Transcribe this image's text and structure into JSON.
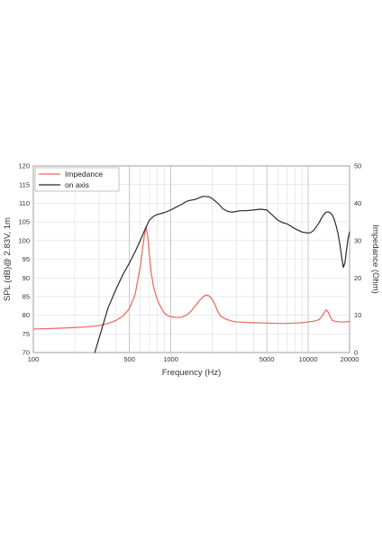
{
  "chart_data": {
    "type": "line",
    "xlabel": "Frequency (Hz)",
    "ylabel": "SPL (dB)@ 2.83V, 1m",
    "y2label": "Impedance (Ohm)",
    "xscale": "log",
    "xlim": [
      100,
      20000
    ],
    "ylim": [
      70,
      120
    ],
    "y2lim": [
      0,
      50
    ],
    "x_ticks": [
      100,
      500,
      1000,
      5000,
      10000,
      20000
    ],
    "y_ticks": [
      70,
      75,
      80,
      85,
      90,
      95,
      100,
      105,
      110,
      115,
      120
    ],
    "y2_ticks": [
      0,
      10,
      20,
      30,
      40,
      50
    ],
    "grid": true,
    "legend_position": "top-left",
    "colors": {
      "impedance": "#e8675e",
      "on_axis": "#2b2b2b"
    },
    "series": [
      {
        "name": "Impedance",
        "axis": "right",
        "x": [
          100,
          150,
          200,
          250,
          300,
          350,
          400,
          450,
          500,
          550,
          600,
          640,
          660,
          680,
          700,
          720,
          750,
          800,
          850,
          900,
          950,
          1000,
          1100,
          1200,
          1300,
          1400,
          1500,
          1600,
          1700,
          1800,
          1900,
          2000,
          2100,
          2200,
          2300,
          2500,
          2800,
          3000,
          4000,
          5000,
          6000,
          7000,
          8000,
          9000,
          10000,
          11000,
          12000,
          12500,
          13000,
          13500,
          14000,
          14500,
          15000,
          16000,
          17000,
          18000,
          20000
        ],
        "values": [
          6.3,
          6.5,
          6.7,
          6.9,
          7.2,
          7.8,
          8.6,
          9.8,
          11.8,
          15.5,
          23,
          31,
          33.8,
          31,
          26,
          21.5,
          17.5,
          14,
          12,
          10.5,
          9.9,
          9.6,
          9.4,
          9.5,
          10.0,
          11.0,
          12.4,
          13.7,
          14.8,
          15.4,
          15.2,
          14.3,
          12.8,
          11.0,
          9.8,
          9.0,
          8.4,
          8.2,
          8.0,
          7.9,
          7.8,
          7.8,
          7.9,
          8.0,
          8.2,
          8.4,
          8.8,
          9.6,
          10.6,
          11.4,
          10.8,
          9.5,
          8.6,
          8.3,
          8.2,
          8.2,
          8.3
        ]
      },
      {
        "name": "on axis",
        "axis": "left",
        "x": [
          280,
          350,
          400,
          450,
          500,
          550,
          600,
          650,
          700,
          750,
          800,
          900,
          1000,
          1100,
          1200,
          1300,
          1400,
          1500,
          1600,
          1700,
          1800,
          1900,
          2000,
          2200,
          2400,
          2600,
          2800,
          3000,
          3200,
          3500,
          4000,
          4500,
          5000,
          5500,
          6000,
          6500,
          7000,
          8000,
          9000,
          10000,
          10500,
          11000,
          11500,
          12000,
          12500,
          13000,
          13500,
          14000,
          14500,
          15000,
          15500,
          16000,
          16500,
          17000,
          17500,
          18000,
          18500,
          19000,
          19500,
          20000
        ],
        "values": [
          70,
          82,
          87,
          91,
          94,
          97,
          100,
          103,
          105.5,
          106.5,
          107,
          107.5,
          108.2,
          109,
          109.7,
          110.5,
          110.8,
          111,
          111.4,
          111.8,
          111.8,
          111.7,
          111.3,
          110,
          108.5,
          107.8,
          107.6,
          107.8,
          108,
          108,
          108.2,
          108.4,
          108.2,
          106.8,
          105.5,
          104.8,
          104.5,
          103.2,
          102.3,
          102,
          102.2,
          102.8,
          103.8,
          104.8,
          106,
          107,
          107.6,
          107.7,
          107.4,
          106.8,
          105.6,
          103.8,
          101.8,
          99,
          95.8,
          92.8,
          94,
          97.5,
          100.5,
          102.3
        ]
      }
    ]
  }
}
